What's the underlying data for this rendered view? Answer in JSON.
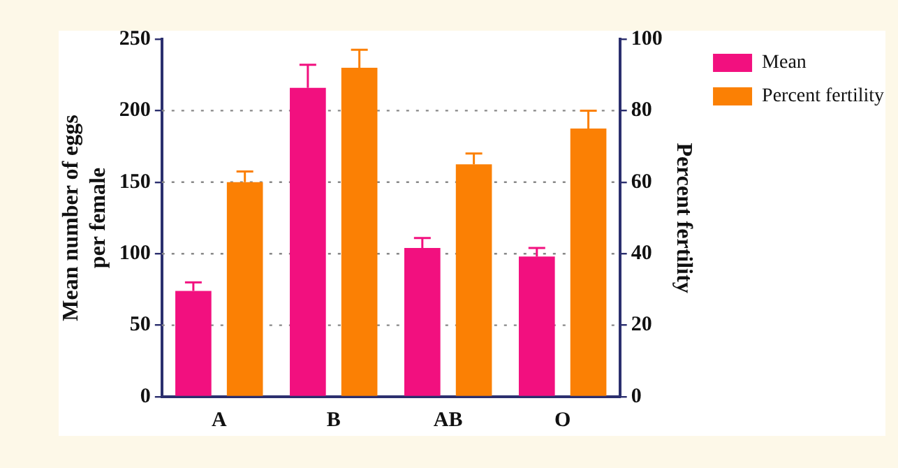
{
  "chart_data": {
    "type": "bar",
    "categories": [
      "A",
      "B",
      "AB",
      "O"
    ],
    "series": [
      {
        "name": "Mean",
        "color": "#f2107f",
        "values": [
          74,
          216,
          104,
          98
        ],
        "errors": [
          [
            74,
            80
          ],
          [
            216,
            232
          ],
          [
            104,
            111
          ],
          [
            98,
            104
          ]
        ]
      },
      {
        "name": "Percent fertility",
        "color": "#fb8004",
        "axis": "y2",
        "values": [
          60,
          92,
          65,
          75
        ],
        "errors": [
          [
            60,
            63
          ],
          [
            92,
            97
          ],
          [
            65,
            68
          ],
          [
            75,
            80
          ]
        ]
      }
    ],
    "ylabel": "Mean number of eggs\nper female",
    "y2label": "Percent fertility",
    "ylim": [
      0,
      250
    ],
    "yticks": [
      0,
      50,
      100,
      150,
      200,
      250
    ],
    "y2lim": [
      0,
      100
    ],
    "y2ticks": [
      0,
      20,
      40,
      60,
      80,
      100
    ],
    "grid": "y",
    "legend": "top right"
  }
}
